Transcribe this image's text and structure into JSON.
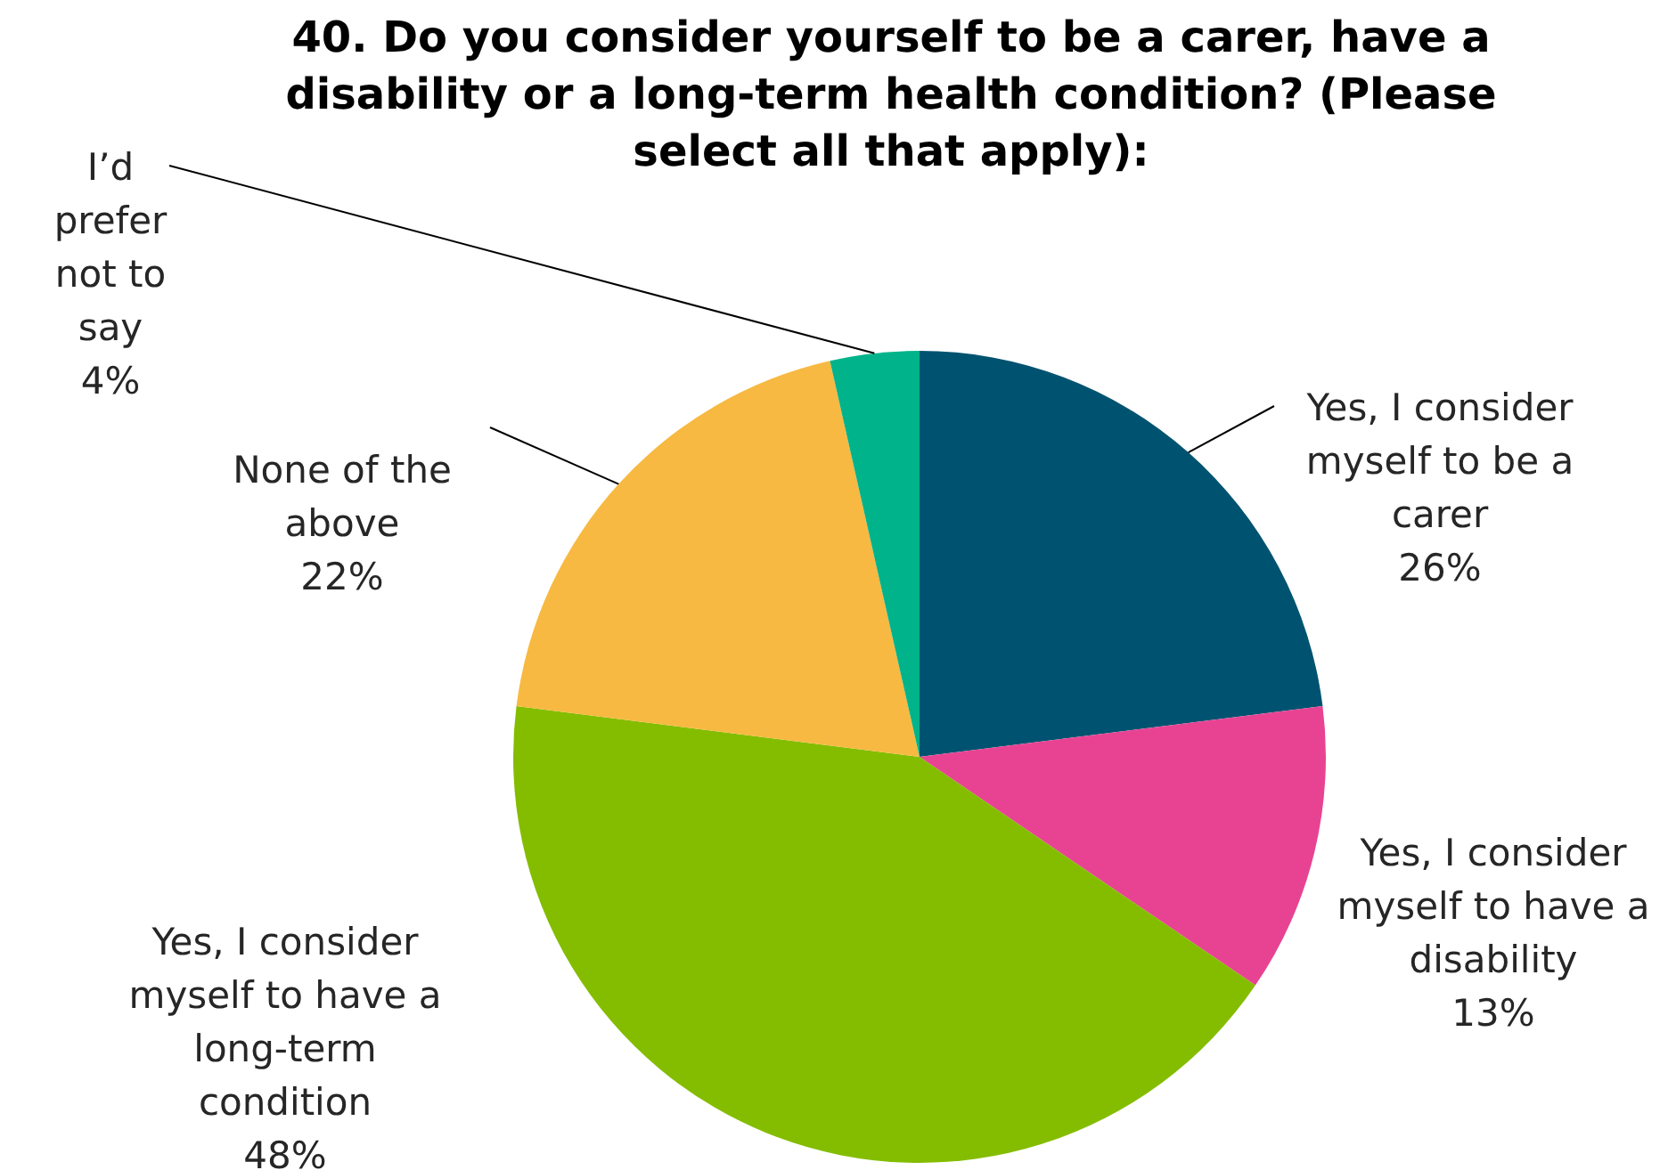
{
  "chart_data": {
    "type": "pie",
    "title": "40. Do you consider yourself to be a carer, have a disability or a long-term health condition? (Please select all that apply):",
    "categories": [
      "Yes, I consider myself to be a carer",
      "Yes, I consider myself to have a disability",
      "Yes, I consider myself to have a long-term condition",
      "None of the above",
      "I’d prefer not to say"
    ],
    "values": [
      26,
      13,
      48,
      22,
      4
    ],
    "value_labels": [
      "26%",
      "13%",
      "48%",
      "22%",
      "4%"
    ],
    "colors": [
      "#005370",
      "#e84393",
      "#84bd00",
      "#f7b941",
      "#00b38a"
    ],
    "legend": false
  }
}
